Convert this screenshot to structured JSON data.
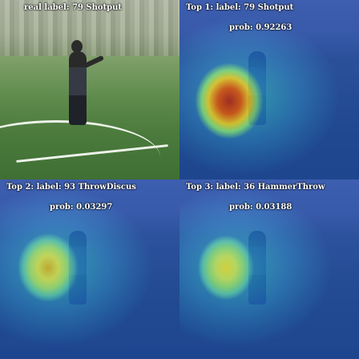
{
  "panels": [
    {
      "title": "real label: 79 Shotput",
      "prob": ""
    },
    {
      "title": "Top 1: label: 79 Shotput",
      "prob": "prob: 0.92263"
    },
    {
      "title": "Top 2: label: 93 ThrowDiscus",
      "prob": "prob: 0.03297"
    },
    {
      "title": "Top 3: label: 36 HammerThrow",
      "prob": "prob: 0.03188"
    }
  ],
  "colors": {
    "text": "#ffffff",
    "heat_cold": "#1d3aa8",
    "heat_hot": "#b01515"
  }
}
